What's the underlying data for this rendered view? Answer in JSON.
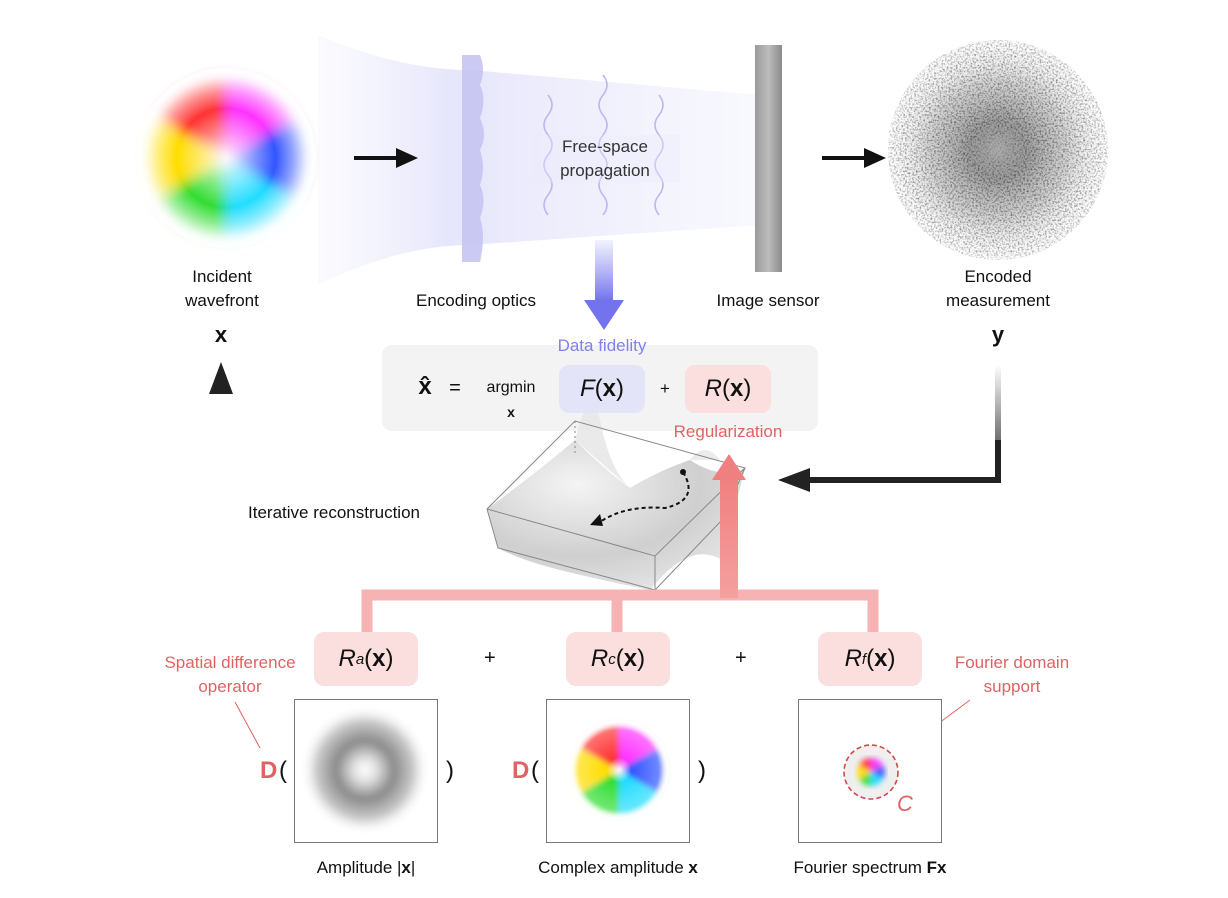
{
  "top": {
    "incident_label": "Incident\nwavefront",
    "incident_symbol": "x",
    "encoding_optics_label": "Encoding optics",
    "propagation_label": "Free-space\npropagation",
    "image_sensor_label": "Image sensor",
    "encoded_label": "Encoded\nmeasurement",
    "encoded_symbol": "y"
  },
  "equation": {
    "lhs": "x̂",
    "equals": "=",
    "argmin": "argmin",
    "argmin_sub": "x",
    "fidelity_label": "Data fidelity",
    "F_name": "F",
    "F_arg": "x",
    "plus": "+",
    "R_name": "R",
    "R_arg": "x",
    "regularization_label": "Regularization"
  },
  "loop": {
    "iterative_label": "Iterative reconstruction"
  },
  "regularizers": {
    "Ra": {
      "name": "R",
      "sub": "a",
      "arg": "x"
    },
    "Rc": {
      "name": "R",
      "sub": "c",
      "arg": "x"
    },
    "Rf": {
      "name": "R",
      "sub": "f",
      "arg": "x"
    },
    "plus1": "+",
    "plus2": "+"
  },
  "annotations": {
    "spatial_diff": "Spatial difference\noperator",
    "fourier_support": "Fourier domain\nsupport",
    "support_symbol": "C",
    "D_symbol": "D",
    "open_paren": "(",
    "close_paren": ")"
  },
  "panels": {
    "amplitude_prefix": "Amplitude |",
    "amplitude_x": "x",
    "amplitude_suffix": "|",
    "complex_prefix": "Complex amplitude ",
    "complex_x": "x",
    "fourier_prefix": "Fourier spectrum ",
    "fourier_fx": "Fx"
  },
  "colors": {
    "fidelity": "#8080ee",
    "regularization": "#e06262",
    "pink_fill": "#fbdede",
    "lavender_fill": "#e4e4f8"
  }
}
